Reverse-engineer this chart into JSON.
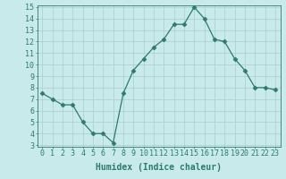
{
  "x": [
    0,
    1,
    2,
    3,
    4,
    5,
    6,
    7,
    8,
    9,
    10,
    11,
    12,
    13,
    14,
    15,
    16,
    17,
    18,
    19,
    20,
    21,
    22,
    23
  ],
  "y": [
    7.5,
    7.0,
    6.5,
    6.5,
    5.0,
    4.0,
    4.0,
    3.2,
    7.5,
    9.5,
    10.5,
    11.5,
    12.2,
    13.5,
    13.5,
    15.0,
    14.0,
    12.2,
    12.0,
    10.5,
    9.5,
    8.0,
    8.0,
    7.8
  ],
  "line_color": "#2d7a6e",
  "marker": "D",
  "marker_size": 2.5,
  "bg_color": "#c8eaea",
  "grid_color": "#aacccc",
  "xlabel": "Humidex (Indice chaleur)",
  "xlim": [
    -0.5,
    23.5
  ],
  "ylim": [
    3,
    15
  ],
  "yticks": [
    3,
    4,
    5,
    6,
    7,
    8,
    9,
    10,
    11,
    12,
    13,
    14,
    15
  ],
  "xticks": [
    0,
    1,
    2,
    3,
    4,
    5,
    6,
    7,
    8,
    9,
    10,
    11,
    12,
    13,
    14,
    15,
    16,
    17,
    18,
    19,
    20,
    21,
    22,
    23
  ],
  "tick_color": "#2d7a6e",
  "label_color": "#2d7a6e",
  "xlabel_fontsize": 7,
  "tick_fontsize": 6
}
